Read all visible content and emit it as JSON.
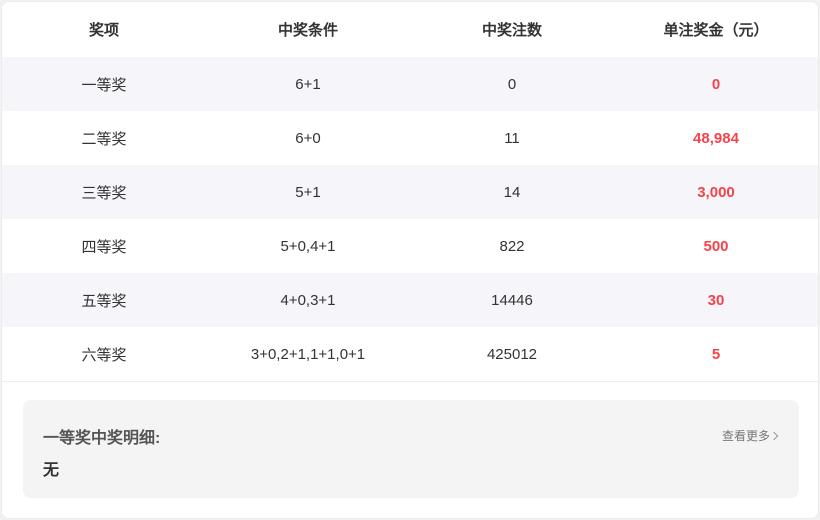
{
  "table": {
    "headers": [
      "奖项",
      "中奖条件",
      "中奖注数",
      "单注奖金（元）"
    ],
    "rows": [
      [
        "一等奖",
        "6+1",
        "0",
        "0"
      ],
      [
        "二等奖",
        "6+0",
        "11",
        "48,984"
      ],
      [
        "三等奖",
        "5+1",
        "14",
        "3,000"
      ],
      [
        "四等奖",
        "5+0,4+1",
        "822",
        "500"
      ],
      [
        "五等奖",
        "4+0,3+1",
        "14446",
        "30"
      ],
      [
        "六等奖",
        "3+0,2+1,1+1,0+1",
        "425012",
        "5"
      ]
    ]
  },
  "detail": {
    "title": "一等奖中奖明细:",
    "value": "无",
    "more_label": "查看更多"
  },
  "colors": {
    "prize": "#f5434b",
    "stripe": "#f5f5fa"
  }
}
